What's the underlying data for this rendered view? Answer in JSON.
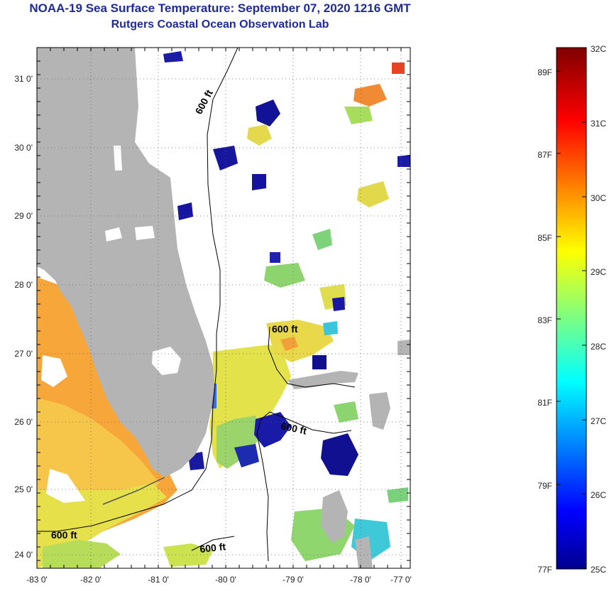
{
  "header": {
    "title": "NOAA-19 Sea Surface Temperature:  September 07, 2020 1216 GMT",
    "subtitle": "Rutgers Coastal Ocean Observation Lab"
  },
  "map": {
    "lon_labels": [
      "-83 0'",
      "-82 0'",
      "-81 0'",
      "-80 0'",
      "-79 0'",
      "-78 0'",
      "-77 0'"
    ],
    "lat_labels": [
      "31 0'",
      "30 0'",
      "29 0'",
      "28 0'",
      "27 0'",
      "26 0'",
      "25 0'",
      "24 0'"
    ],
    "contour_labels": [
      "600 ft",
      "600 ft",
      "600 ft",
      "600 ft",
      "600 ft"
    ],
    "colors": {
      "land": "#b4b4b4",
      "cloud": "#ffffff"
    }
  },
  "colorbar": {
    "celsius_labels": [
      "32C",
      "31C",
      "30C",
      "29C",
      "28C",
      "27C",
      "26C",
      "25C"
    ],
    "fahrenheit_labels": [
      "89F",
      "87F",
      "85F",
      "83F",
      "81F",
      "79F",
      "77F"
    ],
    "range_c": [
      25,
      32
    ]
  }
}
